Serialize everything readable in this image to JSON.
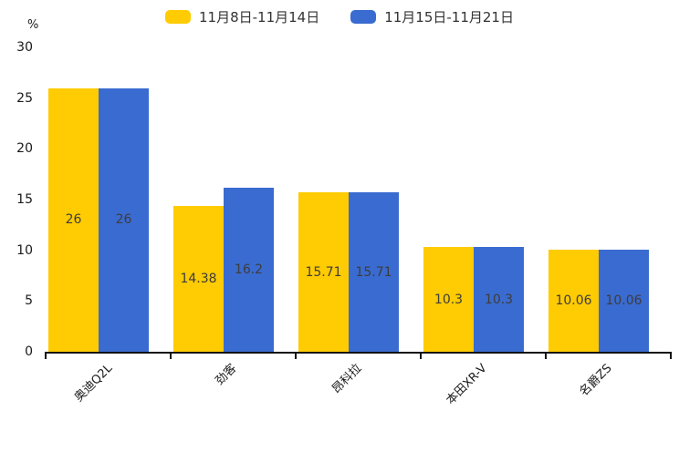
{
  "chart_data": {
    "type": "bar",
    "title": "",
    "categories": [
      "奥迪Q2L",
      "劲客",
      "昂科拉",
      "本田XR-V",
      "名爵ZS"
    ],
    "series": [
      {
        "name": "11月8日-11月14日",
        "color": "#FFCB02",
        "values": [
          26,
          14.38,
          15.71,
          10.3,
          10.06
        ]
      },
      {
        "name": "11月15日-11月21日",
        "color": "#3A6BD0",
        "values": [
          26,
          16.2,
          15.71,
          10.3,
          10.06
        ]
      }
    ],
    "value_labels": [
      [
        "26",
        "14.38",
        "15.71",
        "10.3",
        "10.06"
      ],
      [
        "26",
        "16.2",
        "15.71",
        "10.3",
        "10.06"
      ]
    ],
    "xlabel": "",
    "ylabel": "%",
    "ylim": [
      0,
      30
    ],
    "yticks": [
      0,
      5,
      10,
      15,
      20,
      25,
      30
    ],
    "grid": false,
    "legend_position": "top",
    "axis_color": "#111111",
    "value_label_color": "#3d3d3d"
  }
}
